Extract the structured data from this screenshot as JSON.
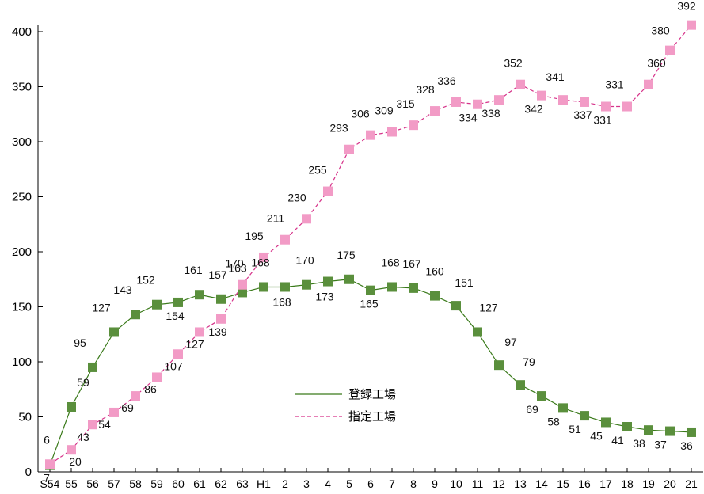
{
  "chart_data": {
    "type": "line",
    "title": "",
    "xlabel": "",
    "ylabel": "",
    "ylim": [
      0,
      400
    ],
    "yticks": [
      0,
      50,
      100,
      150,
      200,
      250,
      300,
      350,
      400
    ],
    "grid": false,
    "legend_position": "center-bottom",
    "categories": [
      "S54",
      "55",
      "56",
      "57",
      "58",
      "59",
      "60",
      "61",
      "62",
      "63",
      "H1",
      "2",
      "3",
      "4",
      "5",
      "6",
      "7",
      "8",
      "9",
      "10",
      "11",
      "12",
      "13",
      "14",
      "15",
      "16",
      "17",
      "18",
      "19",
      "20",
      "21"
    ],
    "series": [
      {
        "name": "登録工場",
        "color": "#3a7a1a",
        "marker_color": "#5a8f3c",
        "line_style": "solid",
        "values": [
          6,
          59,
          95,
          127,
          143,
          152,
          154,
          161,
          157,
          163,
          168,
          168,
          170,
          173,
          175,
          165,
          168,
          167,
          160,
          151,
          127,
          97,
          79,
          69,
          58,
          51,
          45,
          41,
          38,
          37,
          36
        ]
      },
      {
        "name": "指定工場",
        "color": "#d6338a",
        "marker_color": "#f29bc6",
        "line_style": "dashed",
        "values": [
          7,
          20,
          43,
          54,
          69,
          86,
          107,
          127,
          139,
          170,
          195,
          211,
          230,
          255,
          293,
          306,
          309,
          315,
          328,
          336,
          334,
          338,
          352,
          342,
          341,
          337,
          331,
          331,
          360,
          380,
          392
        ],
        "plotted_values": [
          7,
          20,
          43,
          54,
          69,
          86,
          107,
          127,
          139,
          170,
          195,
          211,
          230,
          255,
          293,
          306,
          309,
          315,
          328,
          336,
          334,
          338,
          352,
          342,
          338,
          336,
          332,
          332,
          352,
          383,
          406
        ]
      }
    ]
  }
}
